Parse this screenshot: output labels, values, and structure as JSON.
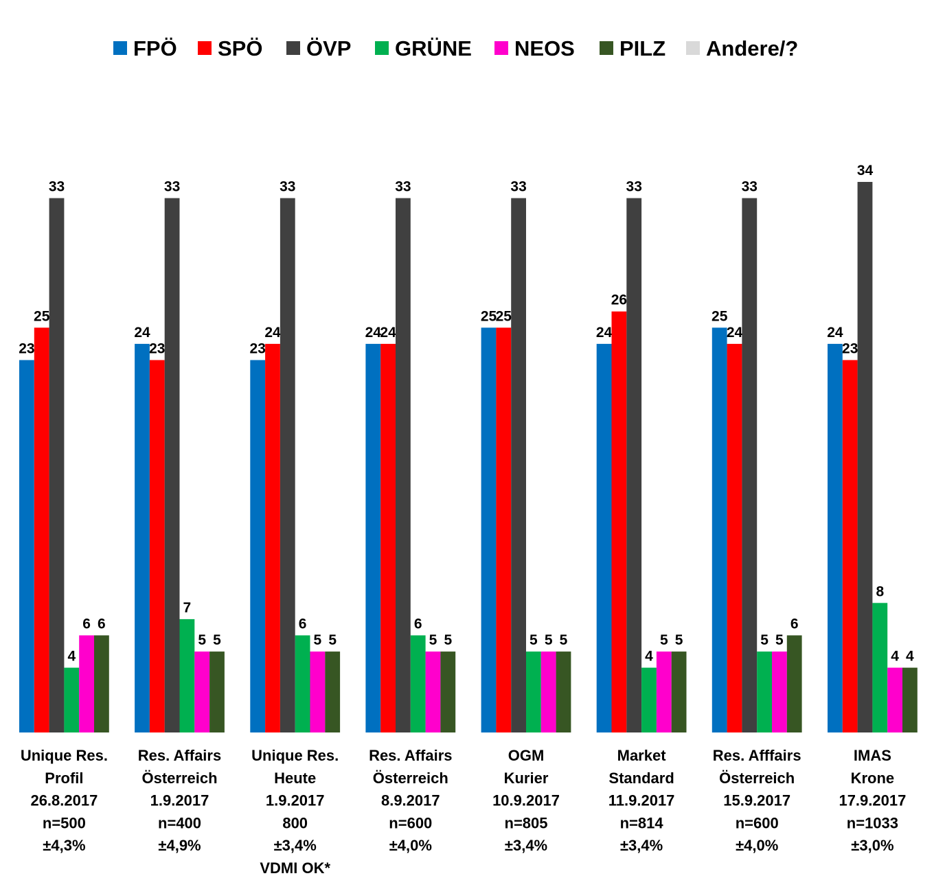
{
  "chart_data": {
    "type": "bar",
    "title": "",
    "xlabel": "",
    "ylabel": "",
    "ylim": [
      0,
      34
    ],
    "grid": false,
    "legend_position": "top",
    "categories": [
      [
        "Unique Res.",
        "Profil",
        "26.8.2017",
        "n=500",
        "±4,3%"
      ],
      [
        "Res. Affairs",
        "Österreich",
        "1.9.2017",
        "n=400",
        "±4,9%"
      ],
      [
        "Unique Res.",
        "Heute",
        "1.9.2017",
        "800",
        "±3,4%",
        "VDMI OK*"
      ],
      [
        "Res. Affairs",
        "Österreich",
        "8.9.2017",
        "n=600",
        "±4,0%"
      ],
      [
        "OGM",
        "Kurier",
        "10.9.2017",
        "n=805",
        "±3,4%"
      ],
      [
        "Market",
        "Standard",
        "11.9.2017",
        "n=814",
        "±3,4%"
      ],
      [
        "Res. Afffairs",
        "Österreich",
        "15.9.2017",
        "n=600",
        "±4,0%"
      ],
      [
        "IMAS",
        "Krone",
        "17.9.2017",
        "n=1033",
        "±3,0%"
      ]
    ],
    "series": [
      {
        "name": "FPÖ",
        "color": "#0070C0",
        "values": [
          23,
          24,
          23,
          24,
          25,
          24,
          25,
          24
        ]
      },
      {
        "name": "SPÖ",
        "color": "#FF0000",
        "values": [
          25,
          23,
          24,
          24,
          25,
          26,
          24,
          23
        ]
      },
      {
        "name": "ÖVP",
        "color": "#404040",
        "values": [
          33,
          33,
          33,
          33,
          33,
          33,
          33,
          34
        ]
      },
      {
        "name": "GRÜNE",
        "color": "#00B050",
        "values": [
          4,
          7,
          6,
          6,
          5,
          4,
          5,
          8
        ]
      },
      {
        "name": "NEOS",
        "color": "#FF00CC",
        "values": [
          6,
          5,
          5,
          5,
          5,
          5,
          5,
          4
        ]
      },
      {
        "name": "PILZ",
        "color": "#375623",
        "values": [
          6,
          5,
          5,
          5,
          5,
          5,
          6,
          4
        ]
      },
      {
        "name": "Andere/?",
        "color": "#D9D9D9",
        "values": [
          null,
          null,
          null,
          null,
          null,
          null,
          null,
          null
        ]
      }
    ]
  }
}
